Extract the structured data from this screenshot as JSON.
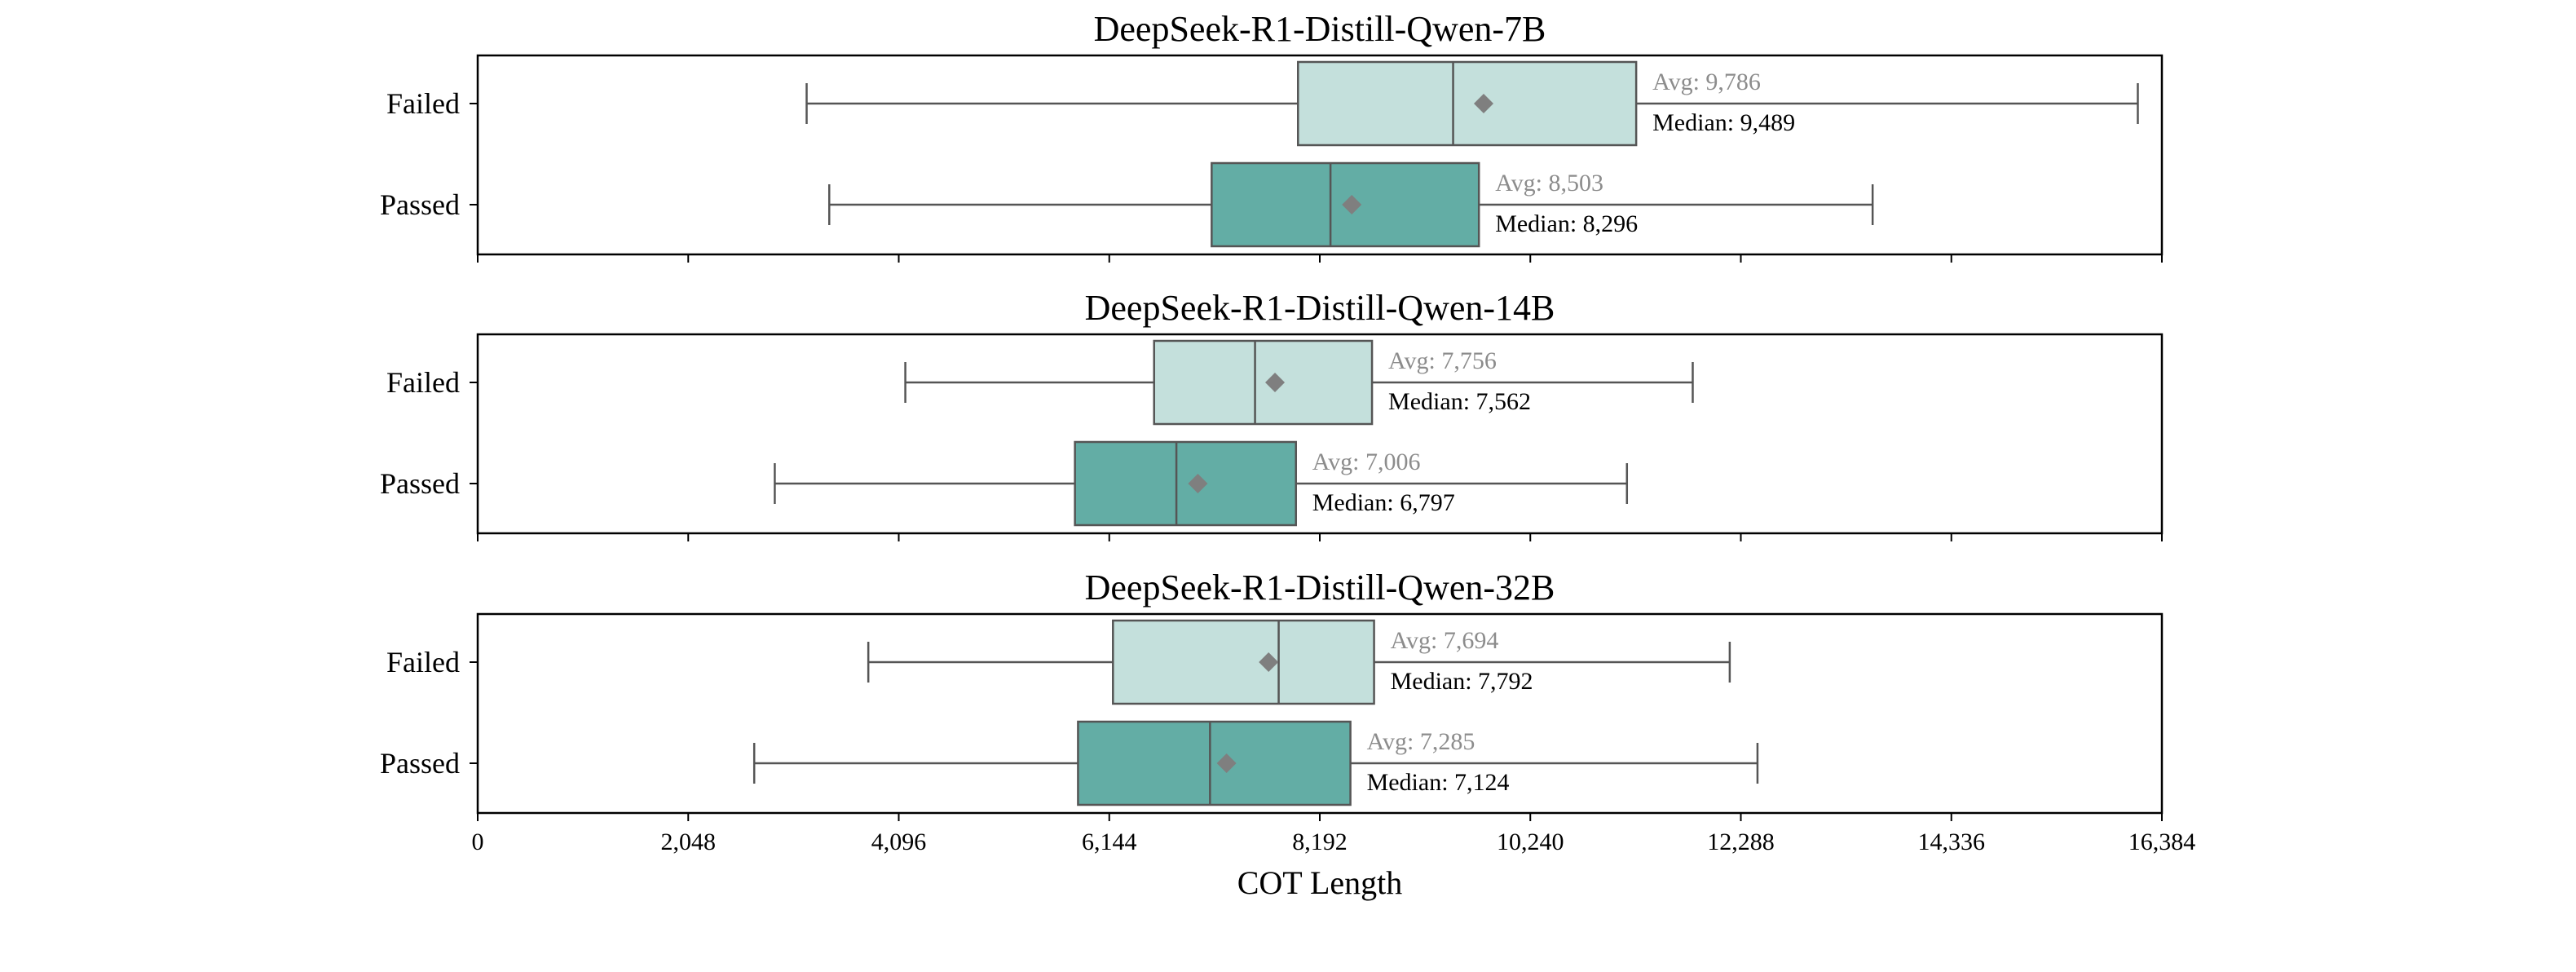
{
  "chart_data": {
    "type": "boxplot",
    "xlabel": "COT Length",
    "xlim": [
      0,
      16384
    ],
    "xticks": [
      0,
      2048,
      4096,
      6144,
      8192,
      10240,
      12288,
      14336,
      16384
    ],
    "xtick_labels": [
      "0",
      "2,048",
      "4,096",
      "6,144",
      "8,192",
      "10,240",
      "12,288",
      "14,336",
      "16,384"
    ],
    "categories": [
      "Failed",
      "Passed"
    ],
    "colors": {
      "Failed": "#c4e0dc",
      "Passed": "#63ada5",
      "line": "#555555",
      "mean_marker": "#7f7f7f",
      "avg_text": "#8c8c8c"
    },
    "panels": [
      {
        "title": "DeepSeek-R1-Distill-Qwen-7B",
        "boxes": [
          {
            "category": "Failed",
            "whisker_low": 3200,
            "q1": 7980,
            "median": 9489,
            "q3": 11270,
            "whisker_high": 16150,
            "mean": 9786,
            "avg_label": "Avg: 9,786",
            "median_label": "Median: 9,489"
          },
          {
            "category": "Passed",
            "whisker_low": 3420,
            "q1": 7140,
            "median": 8296,
            "q3": 9740,
            "whisker_high": 13570,
            "mean": 8503,
            "avg_label": "Avg: 8,503",
            "median_label": "Median: 8,296"
          }
        ]
      },
      {
        "title": "DeepSeek-R1-Distill-Qwen-14B",
        "boxes": [
          {
            "category": "Failed",
            "whisker_low": 4160,
            "q1": 6580,
            "median": 7562,
            "q3": 8700,
            "whisker_high": 11820,
            "mean": 7756,
            "avg_label": "Avg: 7,756",
            "median_label": "Median: 7,562"
          },
          {
            "category": "Passed",
            "whisker_low": 2890,
            "q1": 5810,
            "median": 6797,
            "q3": 7960,
            "whisker_high": 11180,
            "mean": 7006,
            "avg_label": "Avg: 7,006",
            "median_label": "Median: 6,797"
          }
        ]
      },
      {
        "title": "DeepSeek-R1-Distill-Qwen-32B",
        "boxes": [
          {
            "category": "Failed",
            "whisker_low": 3800,
            "q1": 6180,
            "median": 7792,
            "q3": 8720,
            "whisker_high": 12180,
            "mean": 7694,
            "avg_label": "Avg: 7,694",
            "median_label": "Median: 7,792"
          },
          {
            "category": "Passed",
            "whisker_low": 2690,
            "q1": 5840,
            "median": 7124,
            "q3": 8490,
            "whisker_high": 12450,
            "mean": 7285,
            "avg_label": "Avg: 7,285",
            "median_label": "Median: 7,124"
          }
        ]
      }
    ]
  }
}
